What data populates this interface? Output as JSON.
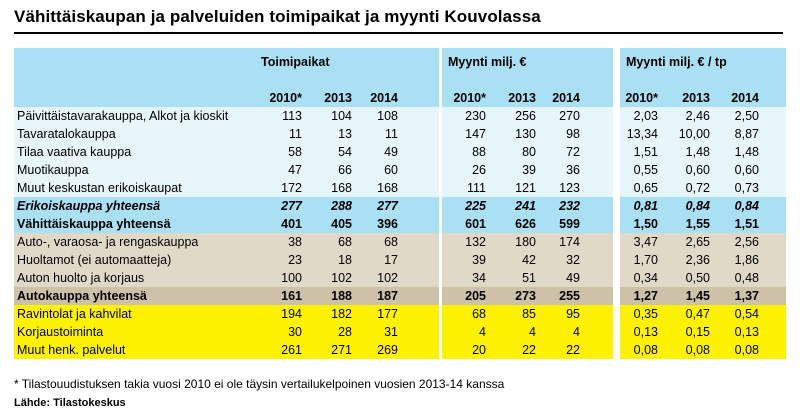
{
  "title": "Vähittäiskaupan ja palveluiden toimipaikat ja myynti Kouvolassa",
  "groups": {
    "g1": "Toimipaikat",
    "g2": "Myynti milj. €",
    "g3": "Myynti milj. € / tp"
  },
  "years": [
    "2010*",
    "2013",
    "2014"
  ],
  "colors": {
    "light_blue": "#e7f6fb",
    "blue": "#a9e0f3",
    "tan": "#e0d9c8",
    "tan_dark": "#cdc2a7",
    "yellow": "#fff200"
  },
  "rows": [
    {
      "label": "Päivittäistavarakauppa, Alkot ja kioskit",
      "style": "light",
      "tp": [
        "113",
        "104",
        "108"
      ],
      "my": [
        "230",
        "256",
        "270"
      ],
      "pt": [
        "2,03",
        "2,46",
        "2,50"
      ]
    },
    {
      "label": "Tavaratalokauppa",
      "style": "light",
      "tp": [
        "11",
        "13",
        "11"
      ],
      "my": [
        "147",
        "130",
        "98"
      ],
      "pt": [
        "13,34",
        "10,00",
        "8,87"
      ]
    },
    {
      "label": "Tilaa vaativa kauppa",
      "style": "light",
      "tp": [
        "58",
        "54",
        "49"
      ],
      "my": [
        "88",
        "80",
        "72"
      ],
      "pt": [
        "1,51",
        "1,48",
        "1,48"
      ]
    },
    {
      "label": "Muotikauppa",
      "style": "light",
      "tp": [
        "47",
        "66",
        "60"
      ],
      "my": [
        "26",
        "39",
        "36"
      ],
      "pt": [
        "0,55",
        "0,60",
        "0,60"
      ]
    },
    {
      "label": "Muut keskustan erikoiskaupat",
      "style": "light",
      "tp": [
        "172",
        "168",
        "168"
      ],
      "my": [
        "111",
        "121",
        "123"
      ],
      "pt": [
        "0,65",
        "0,72",
        "0,73"
      ]
    },
    {
      "label": "Erikoiskauppa yhteensä",
      "style": "blue-bi",
      "tp": [
        "277",
        "288",
        "277"
      ],
      "my": [
        "225",
        "241",
        "232"
      ],
      "pt": [
        "0,81",
        "0,84",
        "0,84"
      ]
    },
    {
      "label": "Vähittäiskauppa yhteensä",
      "style": "blue",
      "tp": [
        "401",
        "405",
        "396"
      ],
      "my": [
        "601",
        "626",
        "599"
      ],
      "pt": [
        "1,50",
        "1,55",
        "1,51"
      ]
    },
    {
      "label": "Auto-, varaosa- ja rengaskauppa",
      "style": "tan",
      "tp": [
        "38",
        "68",
        "68"
      ],
      "my": [
        "132",
        "180",
        "174"
      ],
      "pt": [
        "3,47",
        "2,65",
        "2,56"
      ]
    },
    {
      "label": "Huoltamot (ei automaatteja)",
      "style": "tan",
      "tp": [
        "23",
        "18",
        "17"
      ],
      "my": [
        "39",
        "42",
        "32"
      ],
      "pt": [
        "1,70",
        "2,36",
        "1,86"
      ]
    },
    {
      "label": "Auton huolto ja korjaus",
      "style": "tan",
      "tp": [
        "100",
        "102",
        "102"
      ],
      "my": [
        "34",
        "51",
        "49"
      ],
      "pt": [
        "0,34",
        "0,50",
        "0,48"
      ]
    },
    {
      "label": "Autokauppa yhteensä",
      "style": "tan-b",
      "tp": [
        "161",
        "188",
        "187"
      ],
      "my": [
        "205",
        "273",
        "255"
      ],
      "pt": [
        "1,27",
        "1,45",
        "1,37"
      ]
    },
    {
      "label": "Ravintolat ja kahvilat",
      "style": "yellow",
      "tp": [
        "194",
        "182",
        "177"
      ],
      "my": [
        "68",
        "85",
        "95"
      ],
      "pt": [
        "0,35",
        "0,47",
        "0,54"
      ]
    },
    {
      "label": "Korjaustoiminta",
      "style": "yellow",
      "tp": [
        "30",
        "28",
        "31"
      ],
      "my": [
        "4",
        "4",
        "4"
      ],
      "pt": [
        "0,13",
        "0,15",
        "0,13"
      ]
    },
    {
      "label": "Muut henk. palvelut",
      "style": "yellow",
      "tp": [
        "261",
        "271",
        "269"
      ],
      "my": [
        "20",
        "22",
        "22"
      ],
      "pt": [
        "0,08",
        "0,08",
        "0,08"
      ]
    }
  ],
  "footnote": "* Tilastouudistuksen takia vuosi 2010 ei ole täysin vertailukelpoinen vuosien 2013-14 kanssa",
  "source": "Lähde: Tilastokeskus"
}
